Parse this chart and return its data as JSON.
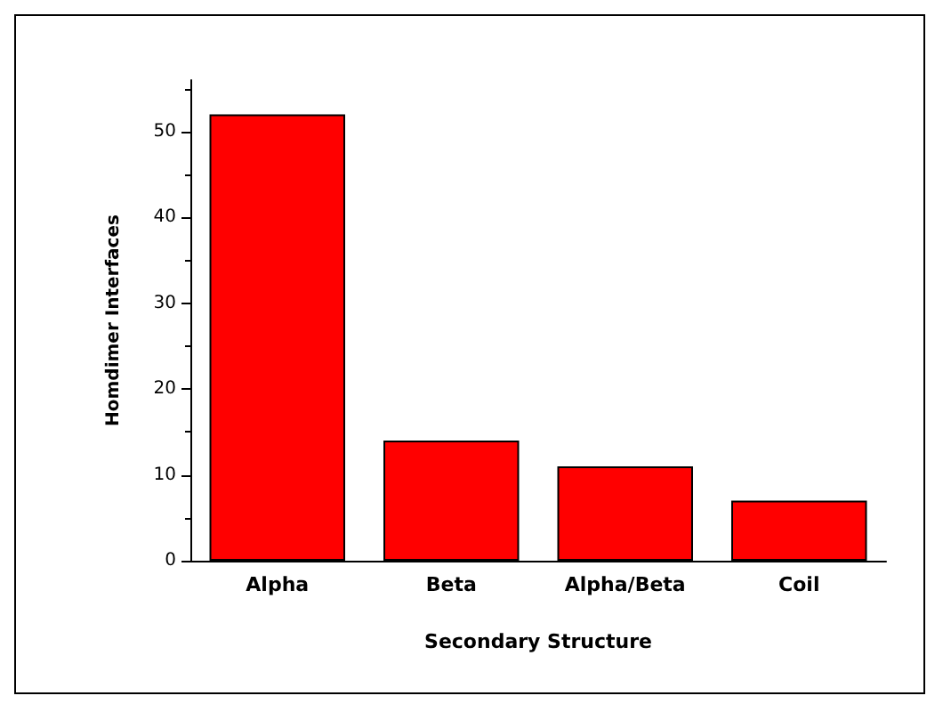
{
  "chart_data": {
    "type": "bar",
    "xlabel": "Secondary Structure",
    "ylabel": "Homdimer Interfaces",
    "categories": [
      "Alpha",
      "Beta",
      "Alpha/Beta",
      "Coil"
    ],
    "values": [
      52,
      14,
      11,
      7
    ],
    "color": "#ff0000",
    "ylim": [
      0,
      56
    ],
    "yticks": [
      0,
      10,
      20,
      30,
      40,
      50
    ],
    "grid": false
  }
}
